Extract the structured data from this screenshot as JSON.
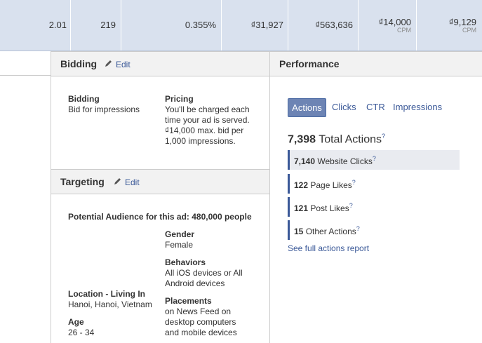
{
  "top_row": {
    "cells": [
      {
        "value": "2.01"
      },
      {
        "value": "219"
      },
      {
        "value": "0.355%"
      },
      {
        "value": "₫31,927"
      },
      {
        "value": "₫563,636"
      },
      {
        "value": "₫14,000",
        "sub": "CPM"
      },
      {
        "value": "₫9,129",
        "sub": "CPM"
      }
    ]
  },
  "bidding": {
    "title": "Bidding",
    "edit": "Edit",
    "bidding_label": "Bidding",
    "bidding_value": "Bid for impressions",
    "pricing_label": "Pricing",
    "pricing_lines": [
      "You'll be charged each",
      "time your ad is served.",
      "₫14,000 max. bid per",
      "1,000 impressions."
    ]
  },
  "targeting": {
    "title": "Targeting",
    "edit": "Edit",
    "audience": "Potential Audience for this ad: 480,000 people",
    "gender_label": "Gender",
    "gender_value": "Female",
    "behaviors_label": "Behaviors",
    "behaviors_lines": [
      "All iOS devices or All",
      "Android devices"
    ],
    "location_label": "Location - Living In",
    "location_value": "Hanoi, Hanoi, Vietnam",
    "placements_label": "Placements",
    "placements_lines": [
      "on News Feed on",
      "desktop computers",
      "and mobile devices"
    ],
    "age_label": "Age",
    "age_value": "26 - 34"
  },
  "performance": {
    "title": "Performance",
    "tabs": [
      "Actions",
      "Clicks",
      "CTR",
      "Impressions"
    ],
    "total": {
      "count": "7,398",
      "label": "Total Actions",
      "help": "?"
    },
    "rows": [
      {
        "count": "7,140",
        "label": "Website Clicks",
        "help": "?"
      },
      {
        "count": "122",
        "label": "Page Likes",
        "help": "?"
      },
      {
        "count": "121",
        "label": "Post Likes",
        "help": "?"
      },
      {
        "count": "15",
        "label": "Other Actions",
        "help": "?"
      }
    ],
    "link": "See full actions report"
  }
}
